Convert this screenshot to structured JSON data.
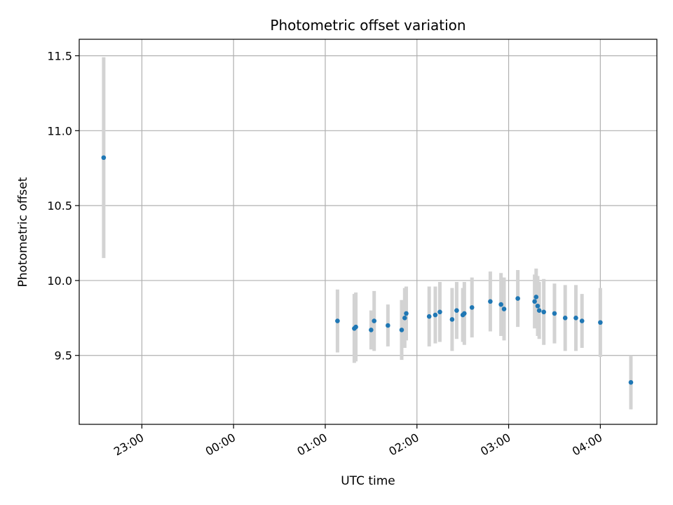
{
  "chart_data": {
    "type": "scatter",
    "title": "Photometric offset variation",
    "xlabel": "UTC time",
    "ylabel": "Photometric offset",
    "x_unit": "UTC time (HH:MM, night of observation; ticks after midnight are next day)",
    "xlim": [
      "22:19",
      "04:37"
    ],
    "ylim": [
      9.04,
      11.61
    ],
    "x_ticks": [
      "23:00",
      "00:00",
      "01:00",
      "02:00",
      "03:00",
      "04:00"
    ],
    "y_ticks": [
      9.5,
      10.0,
      10.5,
      11.0,
      11.5
    ],
    "y_tick_labels": [
      "9.5",
      "10.0",
      "10.5",
      "11.0",
      "11.5"
    ],
    "grid": true,
    "colors": {
      "marker": "#1f77b4",
      "errorbar": "#d3d3d3",
      "grid": "#b0b0b0"
    },
    "points": [
      {
        "t": "22:35",
        "y": 10.82,
        "err": 0.67
      },
      {
        "t": "01:08",
        "y": 9.73,
        "err": 0.21
      },
      {
        "t": "01:19",
        "y": 9.68,
        "err": 0.23
      },
      {
        "t": "01:20",
        "y": 9.69,
        "err": 0.23
      },
      {
        "t": "01:30",
        "y": 9.67,
        "err": 0.13
      },
      {
        "t": "01:32",
        "y": 9.73,
        "err": 0.2
      },
      {
        "t": "01:41",
        "y": 9.7,
        "err": 0.14
      },
      {
        "t": "01:50",
        "y": 9.67,
        "err": 0.2
      },
      {
        "t": "01:52",
        "y": 9.75,
        "err": 0.2
      },
      {
        "t": "01:53",
        "y": 9.78,
        "err": 0.18
      },
      {
        "t": "02:08",
        "y": 9.76,
        "err": 0.2
      },
      {
        "t": "02:12",
        "y": 9.77,
        "err": 0.19
      },
      {
        "t": "02:15",
        "y": 9.79,
        "err": 0.2
      },
      {
        "t": "02:23",
        "y": 9.74,
        "err": 0.21
      },
      {
        "t": "02:26",
        "y": 9.8,
        "err": 0.19
      },
      {
        "t": "02:30",
        "y": 9.77,
        "err": 0.18
      },
      {
        "t": "02:31",
        "y": 9.78,
        "err": 0.21
      },
      {
        "t": "02:36",
        "y": 9.82,
        "err": 0.2
      },
      {
        "t": "02:48",
        "y": 9.86,
        "err": 0.2
      },
      {
        "t": "02:55",
        "y": 9.84,
        "err": 0.21
      },
      {
        "t": "02:57",
        "y": 9.81,
        "err": 0.21
      },
      {
        "t": "03:06",
        "y": 9.88,
        "err": 0.19
      },
      {
        "t": "03:17",
        "y": 9.86,
        "err": 0.18
      },
      {
        "t": "03:18",
        "y": 9.89,
        "err": 0.19
      },
      {
        "t": "03:19",
        "y": 9.83,
        "err": 0.2
      },
      {
        "t": "03:20",
        "y": 9.8,
        "err": 0.19
      },
      {
        "t": "03:23",
        "y": 9.79,
        "err": 0.22
      },
      {
        "t": "03:30",
        "y": 9.78,
        "err": 0.2
      },
      {
        "t": "03:37",
        "y": 9.75,
        "err": 0.22
      },
      {
        "t": "03:44",
        "y": 9.75,
        "err": 0.22
      },
      {
        "t": "03:48",
        "y": 9.73,
        "err": 0.18
      },
      {
        "t": "04:00",
        "y": 9.72,
        "err": 0.23
      },
      {
        "t": "04:20",
        "y": 9.32,
        "err": 0.18
      }
    ]
  }
}
